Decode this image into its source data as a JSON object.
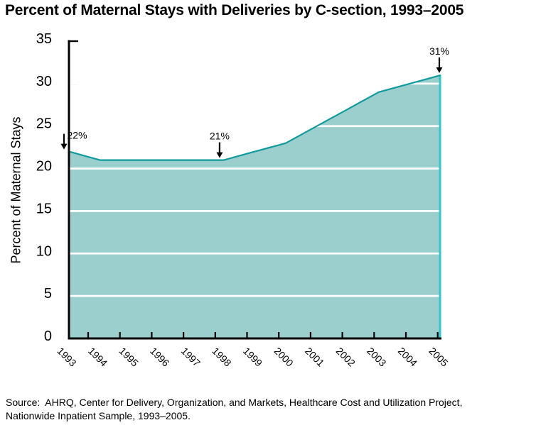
{
  "title": "Percent of Maternal Stays with Deliveries by C-section, 1993–2005",
  "source": {
    "line1": "Source:  AHRQ, Center for Delivery, Organization, and Markets, Healthcare Cost and Utilization Project,",
    "line2": "Nationwide Inpatient Sample, 1993–2005."
  },
  "chart_data": {
    "type": "area",
    "title": "Percent of Maternal Stays with Deliveries by C-section, 1993–2005",
    "xlabel": "",
    "ylabel": "Percent of Maternal Stays",
    "categories": [
      "1993",
      "1994",
      "1995",
      "1996",
      "1997",
      "1998",
      "1999",
      "2000",
      "2001",
      "2002",
      "2003",
      "2004",
      "2005"
    ],
    "values": [
      22,
      21,
      21,
      21,
      21,
      21,
      22,
      23,
      25,
      27,
      29,
      30,
      31
    ],
    "ylim": [
      0,
      35
    ],
    "ytick_step": 5,
    "yticks": [
      0,
      5,
      10,
      15,
      20,
      25,
      30,
      35
    ],
    "grid": "horizontal-white-over-area",
    "legend": "none",
    "annotations": [
      {
        "x": "1993",
        "label": "22%",
        "value": 22,
        "align": "left"
      },
      {
        "x": "1998",
        "label": "21%",
        "value": 21,
        "align": "center"
      },
      {
        "x": "2005",
        "label": "31%",
        "value": 31,
        "align": "center"
      }
    ],
    "colors": {
      "area_fill": "#9bcfce",
      "area_line": "#109a9c",
      "right_edge": "#2fc8cd",
      "axis": "#000000",
      "gridline": "#ffffff",
      "text": "#000000",
      "background": "#ffffff"
    }
  }
}
